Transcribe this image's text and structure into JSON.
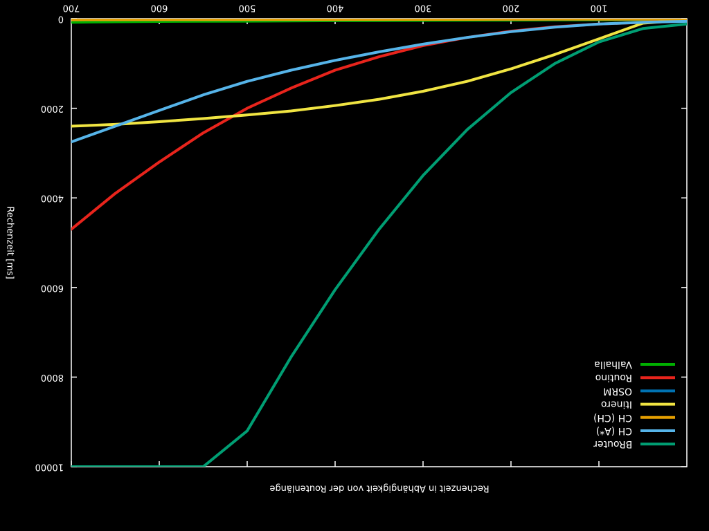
{
  "chart_data": {
    "type": "line",
    "rendered_rotated_180": true,
    "title": "",
    "xlabel": "Rechenzeit in Abhängigkeit von der Routenlänge",
    "ylabel": "Rechenzeit [ms]",
    "xlim": [
      0,
      700
    ],
    "ylim": [
      0,
      10000
    ],
    "xticks": [
      100,
      200,
      300,
      400,
      500,
      600,
      700
    ],
    "xtick_labels": [
      "100",
      "200",
      "300",
      "400",
      "500",
      "600",
      "700"
    ],
    "yticks": [
      0,
      2000,
      4000,
      6000,
      8000,
      10000
    ],
    "ytick_labels": [
      "0",
      "2000",
      "4000",
      "6000",
      "8000",
      "10000"
    ],
    "grid": false,
    "legend_position": "top-left",
    "x": [
      0,
      50,
      100,
      150,
      200,
      250,
      300,
      350,
      400,
      450,
      500,
      550,
      600,
      650,
      700
    ],
    "series": [
      {
        "name": "Valhalla",
        "color": "#00b000",
        "values": [
          15,
          20,
          25,
          28,
          32,
          35,
          38,
          42,
          45,
          50,
          55,
          58,
          62,
          70,
          80
        ]
      },
      {
        "name": "Routino",
        "color": "#e8241c",
        "values": [
          30,
          80,
          120,
          180,
          280,
          420,
          600,
          850,
          1150,
          1550,
          2000,
          2550,
          3200,
          3900,
          4700
        ]
      },
      {
        "name": "OSRM",
        "color": "#0072b2",
        "values": [
          10,
          11,
          12,
          13,
          14,
          15,
          16,
          17,
          18,
          19,
          20,
          21,
          22,
          24,
          25
        ]
      },
      {
        "name": "Itinero",
        "color": "#f0e442",
        "values": [
          30,
          100,
          450,
          800,
          1120,
          1400,
          1620,
          1800,
          1940,
          2060,
          2150,
          2230,
          2300,
          2360,
          2400
        ]
      },
      {
        "name": "CH (CH)",
        "color": "#e69f00",
        "values": [
          10,
          11,
          12,
          13,
          14,
          15,
          16,
          17,
          18,
          19,
          20,
          21,
          22,
          23,
          24
        ]
      },
      {
        "name": "CH (A*)",
        "color": "#56b4e9",
        "values": [
          60,
          80,
          120,
          190,
          290,
          420,
          570,
          740,
          930,
          1150,
          1400,
          1700,
          2050,
          2400,
          2750
        ]
      },
      {
        "name": "BRouter",
        "color": "#009e73",
        "values": [
          120,
          220,
          520,
          1000,
          1650,
          2480,
          3500,
          4700,
          6050,
          7550,
          9200,
          10000,
          10000,
          10000,
          10000
        ]
      }
    ]
  }
}
